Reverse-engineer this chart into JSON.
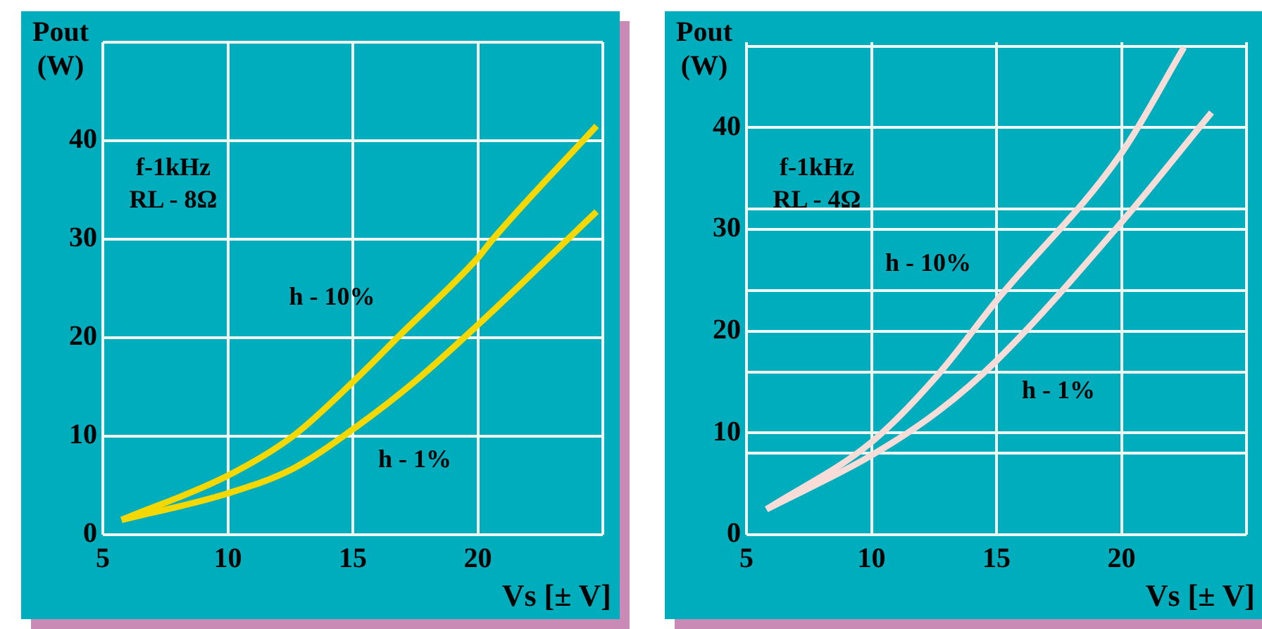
{
  "chart_data": [
    {
      "type": "line",
      "xlabel": "Vs [± V]",
      "ylabel": "Pout (W)",
      "series": [
        {
          "name": "h - 10%",
          "color": "#f5d800",
          "x": [
            5.75,
            10,
            12.6,
            15,
            16.9,
            20,
            20.6,
            24.75
          ],
          "values": [
            1.5,
            6.0,
            10,
            15.5,
            20.3,
            28.1,
            30,
            41.5
          ]
        },
        {
          "name": "h - 1%",
          "color": "#f5d800",
          "x": [
            5.75,
            10,
            12.6,
            15,
            17.5,
            20,
            24.75
          ],
          "values": [
            1.5,
            4.2,
            6.7,
            10.7,
            15.6,
            21.3,
            32.8
          ]
        }
      ],
      "xlim": [
        5,
        25
      ],
      "xticks": [
        5,
        10,
        15,
        20,
        {
          "value": 25,
          "label": null
        }
      ],
      "ylim": [
        0,
        50
      ],
      "yticks": [
        0,
        10,
        20,
        30,
        40,
        {
          "value": 50,
          "label": null
        }
      ],
      "grid": true,
      "legend": false,
      "marker": "none",
      "line_style": "solid",
      "annotations": [
        "f-1kHz",
        "RL - 8Ω"
      ]
    },
    {
      "type": "line",
      "xlabel": "Vs [± V]",
      "ylabel": "Pout (W)",
      "series": [
        {
          "name": "h - 10%",
          "color": "#f8dcd8",
          "x": [
            5.8,
            10,
            12.65,
            15,
            20,
            22.5
          ],
          "values": [
            2.5,
            9.1,
            15.7,
            23,
            37.5,
            47.9
          ]
        },
        {
          "name": "h - 1%",
          "color": "#f8dcd8",
          "x": [
            5.8,
            10,
            12.65,
            15,
            20,
            23.6
          ],
          "values": [
            2.5,
            7.8,
            12.1,
            17.1,
            30.7,
            41.5
          ]
        }
      ],
      "xlim": [
        5,
        25
      ],
      "xticks": [
        5,
        10,
        15,
        20,
        {
          "value": 25,
          "label": null
        }
      ],
      "ylim": [
        0,
        48.4
      ],
      "yticks": [
        0,
        {
          "value": 8,
          "label": null
        },
        10,
        {
          "value": 16,
          "label": null
        },
        20,
        {
          "value": 24,
          "label": null
        },
        30,
        {
          "value": 32,
          "label": null
        },
        40,
        {
          "value": 48,
          "label": null
        }
      ],
      "grid": true,
      "legend": false,
      "marker": "none",
      "line_style": "solid",
      "annotations": [
        "f-1kHz",
        "RL - 4Ω"
      ]
    }
  ]
}
